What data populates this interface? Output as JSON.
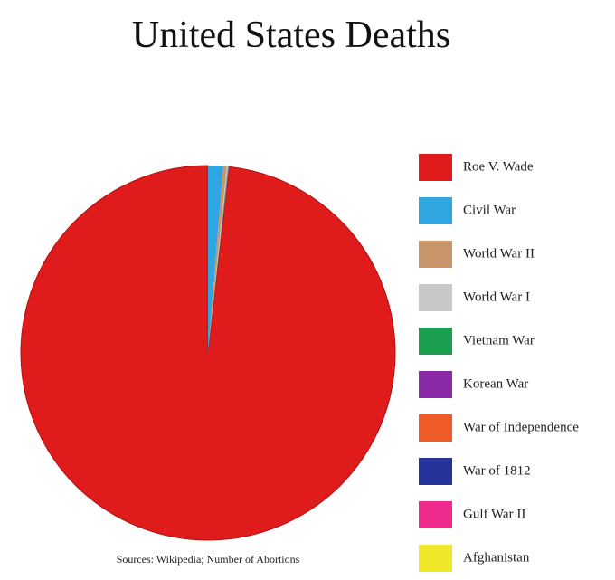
{
  "chart_data": {
    "type": "pie",
    "title": "United States Deaths",
    "categories": [
      "Roe V. Wade",
      "Civil War",
      "World War II",
      "World War I",
      "Vietnam War",
      "Korean War",
      "War of Independence",
      "War of 1812",
      "Gulf War II",
      "Afghanistan"
    ],
    "values": [
      98.1,
      1.3,
      0.3,
      0.1,
      0.05,
      0.03,
      0.02,
      0.01,
      0.005,
      0.003
    ],
    "colors": [
      "#e01b1b",
      "#2fa6e0",
      "#c8946a",
      "#c8c8c8",
      "#1aa050",
      "#8a2aa8",
      "#ee5a28",
      "#26339a",
      "#ee2a8c",
      "#f0e62a"
    ],
    "source": "Sources: Wikipedia; Number of Abortions"
  }
}
